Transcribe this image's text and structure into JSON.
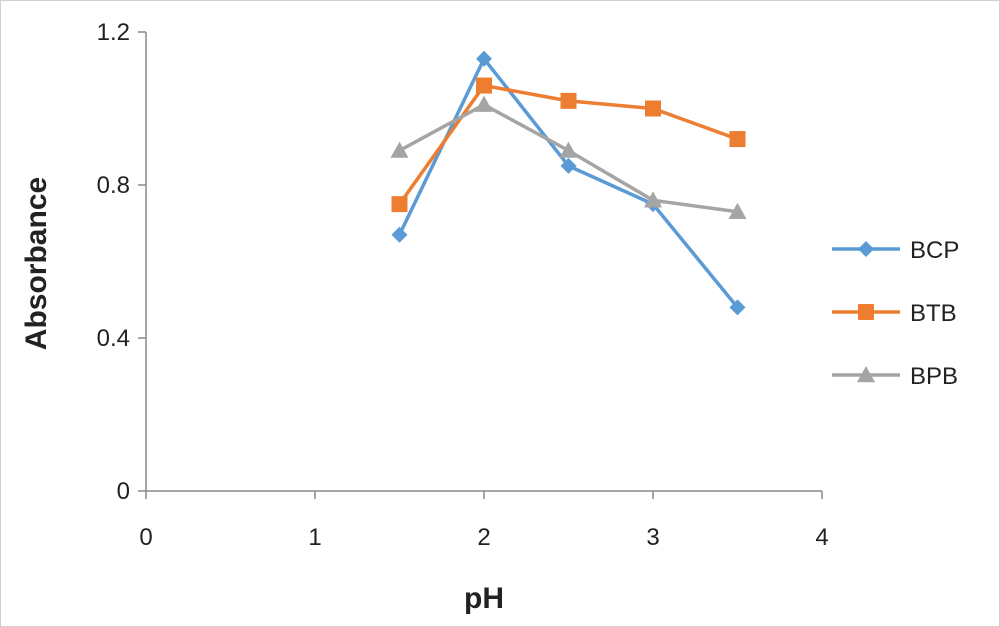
{
  "chart_data": {
    "type": "line",
    "title": "",
    "xlabel": "pH",
    "ylabel": "Absorbance",
    "xlim": [
      0,
      4
    ],
    "ylim": [
      0,
      1.2
    ],
    "x_ticks": [
      0,
      1,
      2,
      3,
      4
    ],
    "y_ticks": [
      0,
      0.4,
      0.8,
      1.2
    ],
    "y_tick_labels": [
      "0",
      "0.4",
      "0.8",
      "1.2"
    ],
    "grid": false,
    "legend_position": "right",
    "x": [
      1.5,
      2,
      2.5,
      3,
      3.5
    ],
    "series": [
      {
        "name": "BCP",
        "marker": "diamond",
        "color": "#5b9bd5",
        "values": [
          0.67,
          1.13,
          0.85,
          0.75,
          0.48
        ]
      },
      {
        "name": "BTB",
        "marker": "square",
        "color": "#ed7d31",
        "values": [
          0.75,
          1.06,
          1.02,
          1.0,
          0.92
        ]
      },
      {
        "name": "BPB",
        "marker": "triangle",
        "color": "#a5a5a5",
        "values": [
          0.89,
          1.01,
          0.89,
          0.76,
          0.73
        ]
      }
    ]
  }
}
